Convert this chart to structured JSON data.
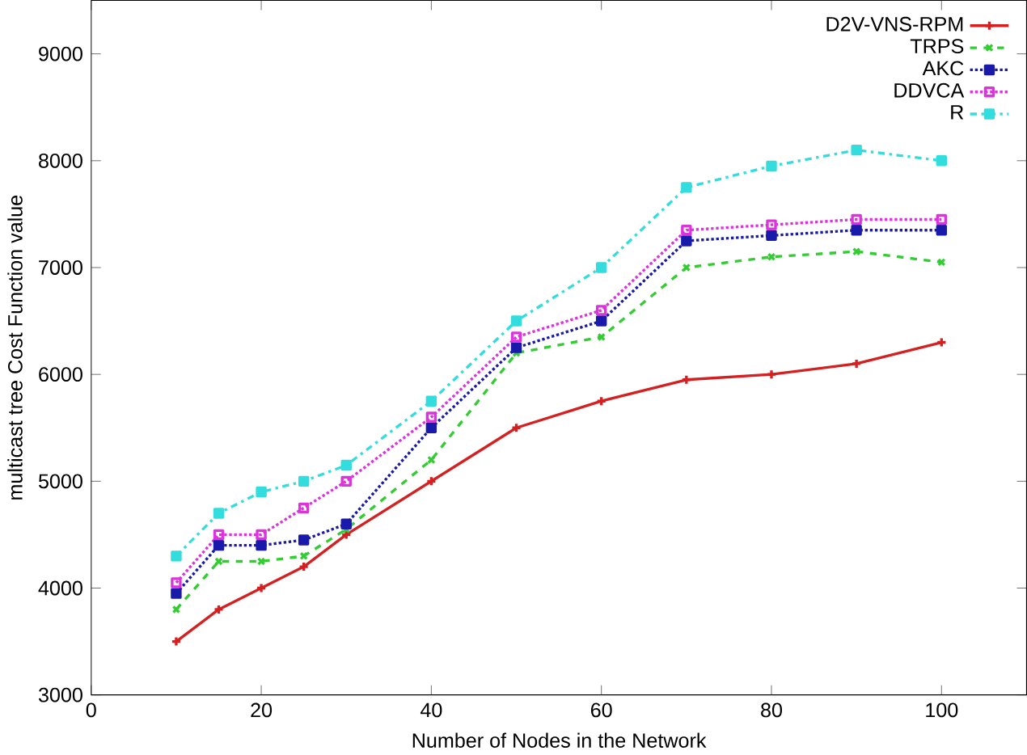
{
  "chart_data": {
    "type": "line",
    "xlabel": "Number of Nodes in the Network",
    "ylabel": "multicast tree Cost Function value",
    "x": [
      10,
      15,
      20,
      25,
      30,
      40,
      50,
      60,
      70,
      80,
      90,
      100
    ],
    "xlim": [
      0,
      110
    ],
    "xticks": [
      0,
      20,
      40,
      60,
      80,
      100
    ],
    "ylim": [
      3000,
      9500
    ],
    "yticks": [
      3000,
      4000,
      5000,
      6000,
      7000,
      8000,
      9000
    ],
    "grid": false,
    "legend": "top right",
    "series": [
      {
        "name": "D2V-VNS-RPM",
        "color": "#d42020",
        "marker": "cross",
        "line_style": "solid",
        "values": [
          3500,
          3800,
          4000,
          4200,
          4500,
          5000,
          5500,
          5750,
          5950,
          6000,
          6100,
          6300
        ]
      },
      {
        "name": "TRPS",
        "color": "#33cc33",
        "marker": "cross",
        "line_style": "dashed",
        "values": [
          3800,
          4250,
          4250,
          4300,
          4550,
          5200,
          6200,
          6350,
          7000,
          7100,
          7150,
          7050
        ]
      },
      {
        "name": "AKC",
        "color": "#1a1aaa",
        "marker": "square",
        "line_style": "dotted",
        "values": [
          3950,
          4400,
          4400,
          4450,
          4600,
          5500,
          6250,
          6500,
          7250,
          7300,
          7350,
          7350
        ]
      },
      {
        "name": "DDVCA",
        "color": "#dd33dd",
        "marker": "square",
        "line_style": "dotted",
        "values": [
          4050,
          4500,
          4500,
          4750,
          5000,
          5600,
          6350,
          6600,
          7350,
          7400,
          7450,
          7450
        ]
      },
      {
        "name": "R",
        "color": "#33dddd",
        "marker": "square",
        "line_style": "dashdot",
        "values": [
          4300,
          4700,
          4900,
          5000,
          5150,
          5750,
          6500,
          7000,
          7750,
          7950,
          8100,
          8000
        ]
      }
    ]
  }
}
